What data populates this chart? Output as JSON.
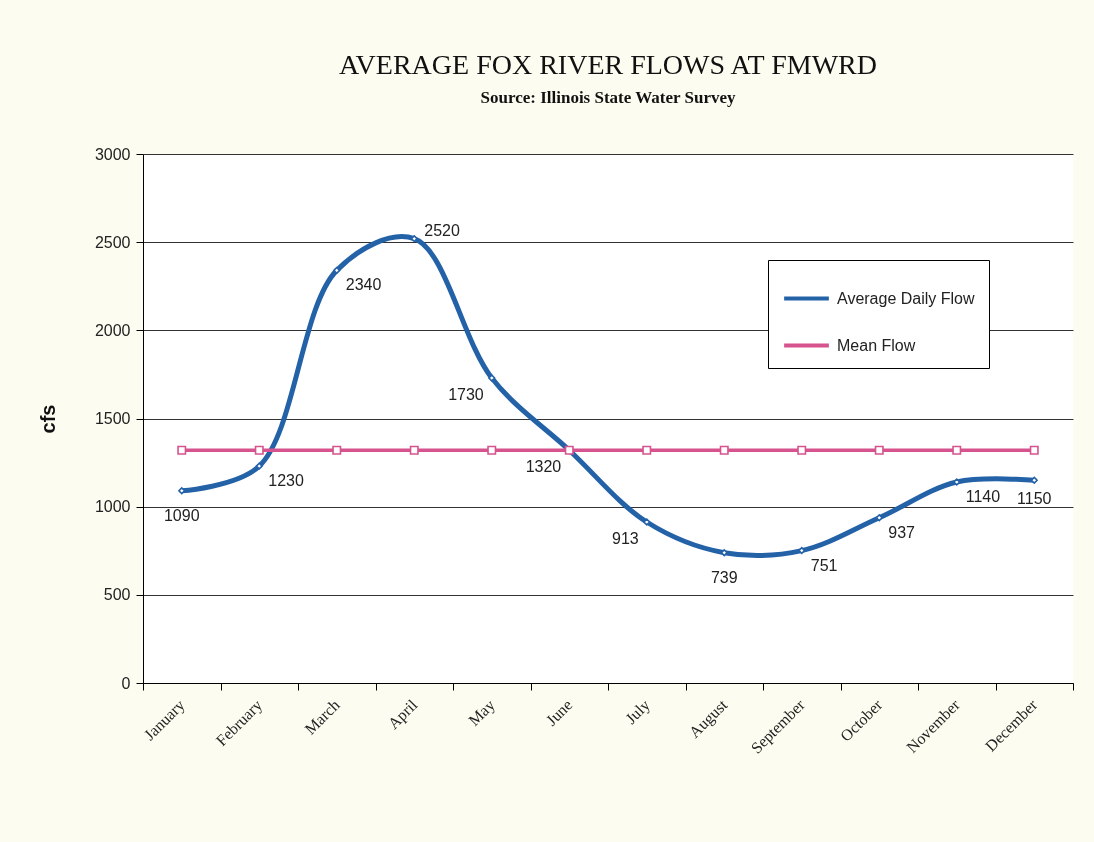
{
  "chart_data": {
    "type": "line",
    "title": "AVERAGE FOX RIVER FLOWS AT FMWRD",
    "subtitle": "Source: Illinois State Water Survey",
    "ylabel": "cfs",
    "categories": [
      "January",
      "February",
      "March",
      "April",
      "May",
      "June",
      "July",
      "August",
      "September",
      "October",
      "November",
      "December"
    ],
    "series": [
      {
        "name": "Average Daily Flow",
        "color": "#2462a8",
        "marker": "diamond",
        "values": [
          1090,
          1230,
          2340,
          2520,
          1730,
          1320,
          913,
          739,
          751,
          937,
          1140,
          1150
        ],
        "value_labels": [
          "1090",
          "1230",
          "2340",
          "2520",
          "1730",
          "1320",
          "913",
          "739",
          "751",
          "937",
          "1140",
          "1150"
        ]
      },
      {
        "name": "Mean Flow",
        "color": "#d6538e",
        "marker": "square",
        "values": [
          1320,
          1320,
          1320,
          1320,
          1320,
          1320,
          1320,
          1320,
          1320,
          1320,
          1320,
          1320
        ]
      }
    ],
    "ylim": [
      0,
      3000
    ],
    "yticks": [
      0,
      500,
      1000,
      1500,
      2000,
      2500,
      3000
    ],
    "grid": "y",
    "legend": "top right"
  }
}
